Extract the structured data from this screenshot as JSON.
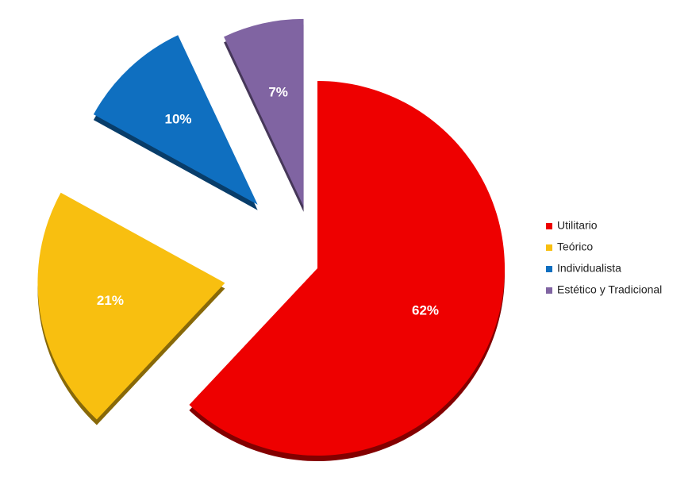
{
  "chart_data": {
    "type": "pie",
    "categories": [
      "Utilitario",
      "Teórico",
      "Individualista",
      "Estético y Tradicional"
    ],
    "values": [
      62,
      21,
      10,
      7
    ],
    "value_labels": [
      "62%",
      "21%",
      "10%",
      "7%"
    ],
    "colors": [
      "#ee0000",
      "#f8bf10",
      "#0f6fc0",
      "#8064a2"
    ],
    "legend": "right"
  }
}
